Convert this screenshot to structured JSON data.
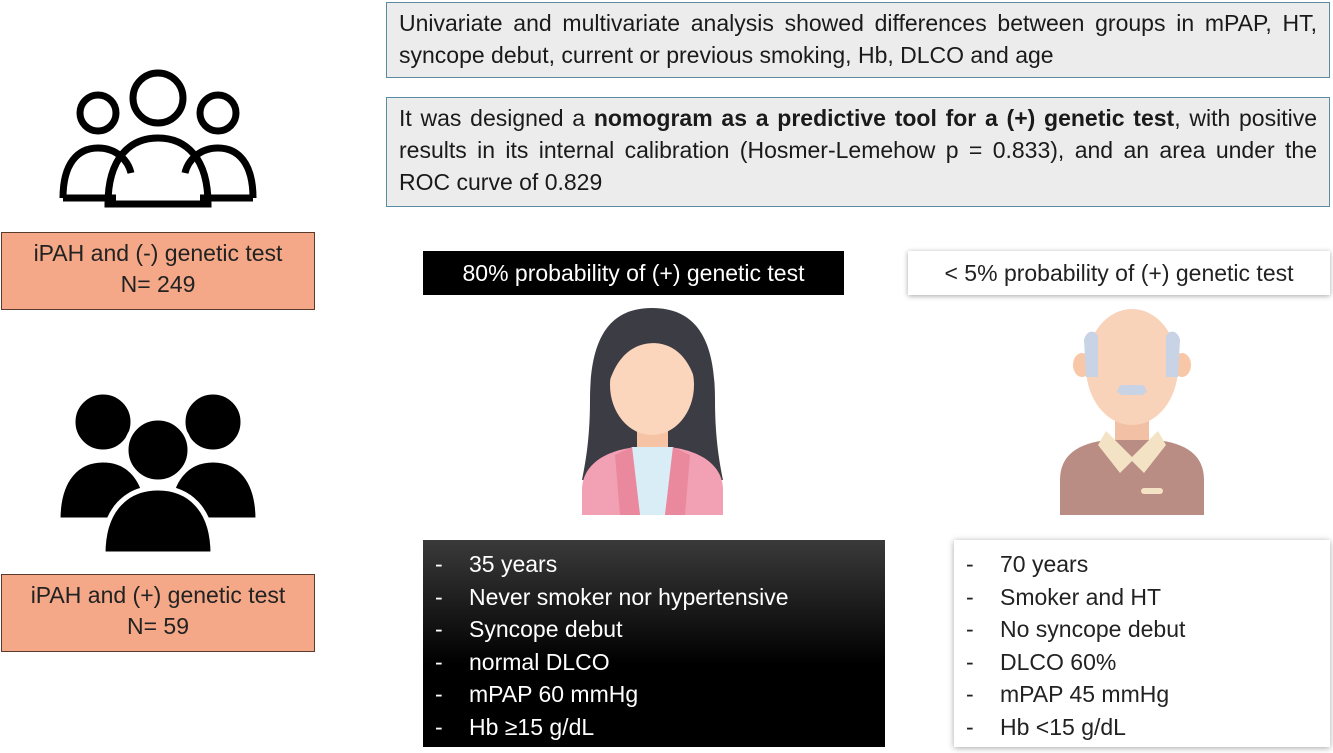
{
  "summary": {
    "analysis_text": "Univariate and multivariate analysis showed differences between groups in mPAP, HT, syncope debut, current or previous smoking, Hb, DLCO and age",
    "nomogram_prefix": "It was designed a ",
    "nomogram_bold": "nomogram as a predictive tool for a (+) genetic test",
    "nomogram_suffix": ", with positive results in its internal calibration (Hosmer-Lemehow p = 0.833), and an area under the ROC curve of 0.829"
  },
  "groups": {
    "negative": {
      "line1": "iPAH and (-) genetic test",
      "line2": "N= 249"
    },
    "positive": {
      "line1": "iPAH and (+) genetic test",
      "line2": "N= 59"
    }
  },
  "probabilities": {
    "high": "80% probability of (+) genetic test",
    "low": "< 5% probability of (+) genetic test"
  },
  "profiles": {
    "dash": "-",
    "high_items": [
      "35 years",
      "Never smoker nor hypertensive",
      "Syncope debut",
      "normal DLCO",
      "mPAP 60 mmHg",
      "Hb ≥15 g/dL"
    ],
    "low_items": [
      "70 years",
      "Smoker and HT",
      "No syncope debut",
      "DLCO 60%",
      "mPAP 45 mmHg",
      "Hb <15 g/dL"
    ]
  },
  "icons": {
    "group_outline": "people-group-outline-icon",
    "group_filled": "people-group-filled-icon",
    "young_woman": "young-woman-avatar-icon",
    "elderly_man": "elderly-man-avatar-icon"
  },
  "colors": {
    "label_fill": "#f4a888",
    "summary_fill": "#ececec",
    "summary_border": "#5b8ba0"
  }
}
